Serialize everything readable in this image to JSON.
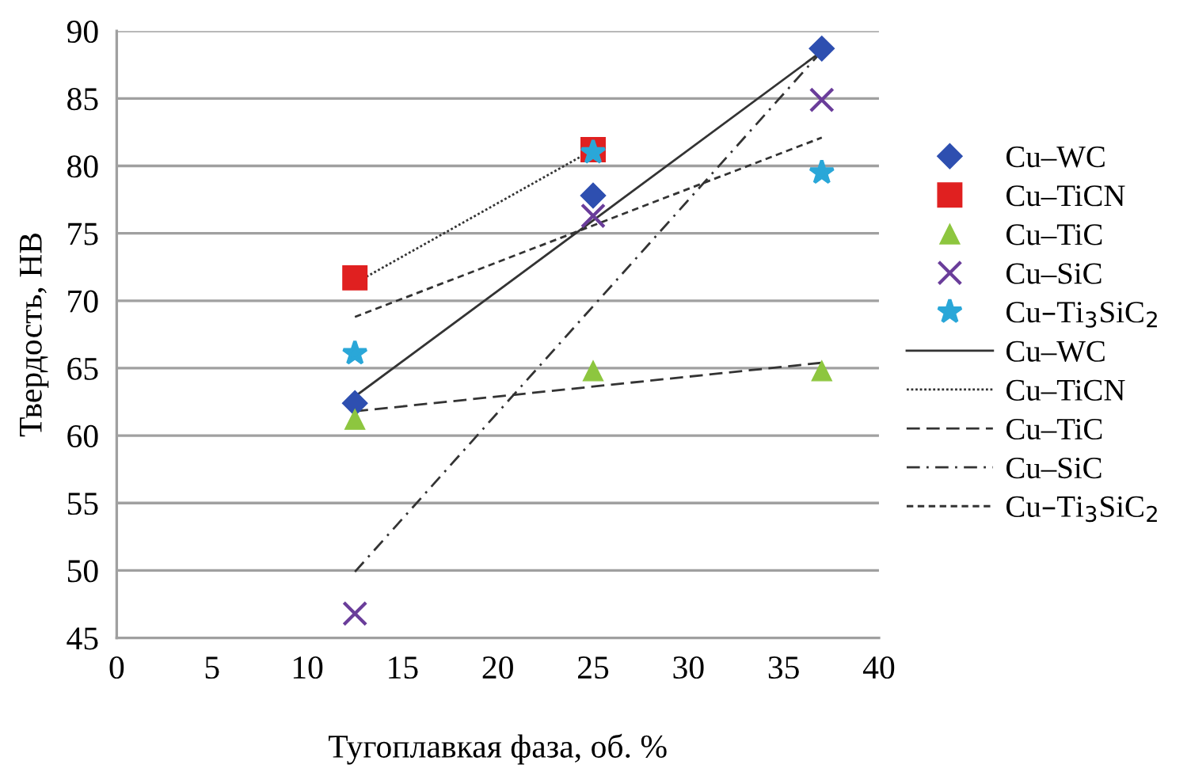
{
  "chart_data": {
    "type": "scatter",
    "xlabel": "Тугоплавкая фаза, об. %",
    "ylabel": "Твердость, HB",
    "xlim": [
      0,
      40
    ],
    "xticks": [
      0,
      5,
      10,
      15,
      20,
      25,
      30,
      35,
      40
    ],
    "ylim": [
      45,
      90
    ],
    "yticks": [
      45,
      50,
      55,
      60,
      65,
      70,
      75,
      80,
      85,
      90
    ],
    "grid": "y",
    "legend": "right",
    "series": [
      {
        "name": "Cu–WC",
        "marker": "diamond",
        "color": "#2e4fb0",
        "x": [
          12.5,
          25,
          37
        ],
        "values": [
          62.4,
          77.8,
          88.7
        ]
      },
      {
        "name": "Cu–TiCN",
        "marker": "square",
        "color": "#e02020",
        "x": [
          12.5,
          25
        ],
        "values": [
          71.7,
          81.2
        ]
      },
      {
        "name": "Cu–TiC",
        "marker": "triangle",
        "color": "#8dc63f",
        "x": [
          12.5,
          25,
          37
        ],
        "values": [
          61.2,
          64.8,
          64.8
        ]
      },
      {
        "name": "Cu–SiC",
        "marker": "cross",
        "color": "#6a3d9a",
        "x": [
          12.5,
          25,
          37
        ],
        "values": [
          46.8,
          76.3,
          84.9
        ]
      },
      {
        "name": "Cu–Ti$_{3}$SiC$_{2}$",
        "marker": "star",
        "color": "#2aa7d8",
        "x": [
          12.5,
          25,
          37
        ],
        "values": [
          66.1,
          81.0,
          79.5
        ]
      },
      {
        "name": "Cu–WC",
        "type": "line",
        "line_style": "solid",
        "color": "#333333",
        "x": [
          12.5,
          37
        ],
        "values": [
          62.9,
          88.5
        ]
      },
      {
        "name": "Cu–TiCN",
        "type": "line",
        "line_style": "dotted",
        "color": "#333333",
        "x": [
          12.5,
          25
        ],
        "values": [
          71.3,
          81.2
        ]
      },
      {
        "name": "Cu–TiC",
        "type": "line",
        "line_style": "dashed",
        "color": "#333333",
        "x": [
          12.5,
          37
        ],
        "values": [
          61.8,
          65.4
        ]
      },
      {
        "name": "Cu–SiC",
        "type": "line",
        "line_style": "dashdot",
        "color": "#333333",
        "x": [
          12.5,
          37
        ],
        "values": [
          49.9,
          88.5
        ]
      },
      {
        "name": "Cu–Ti$_{3}$SiC$_{2}$",
        "type": "line",
        "line_style": "short dashed",
        "color": "#333333",
        "x": [
          12.5,
          37
        ],
        "values": [
          68.8,
          82.1
        ]
      }
    ]
  }
}
